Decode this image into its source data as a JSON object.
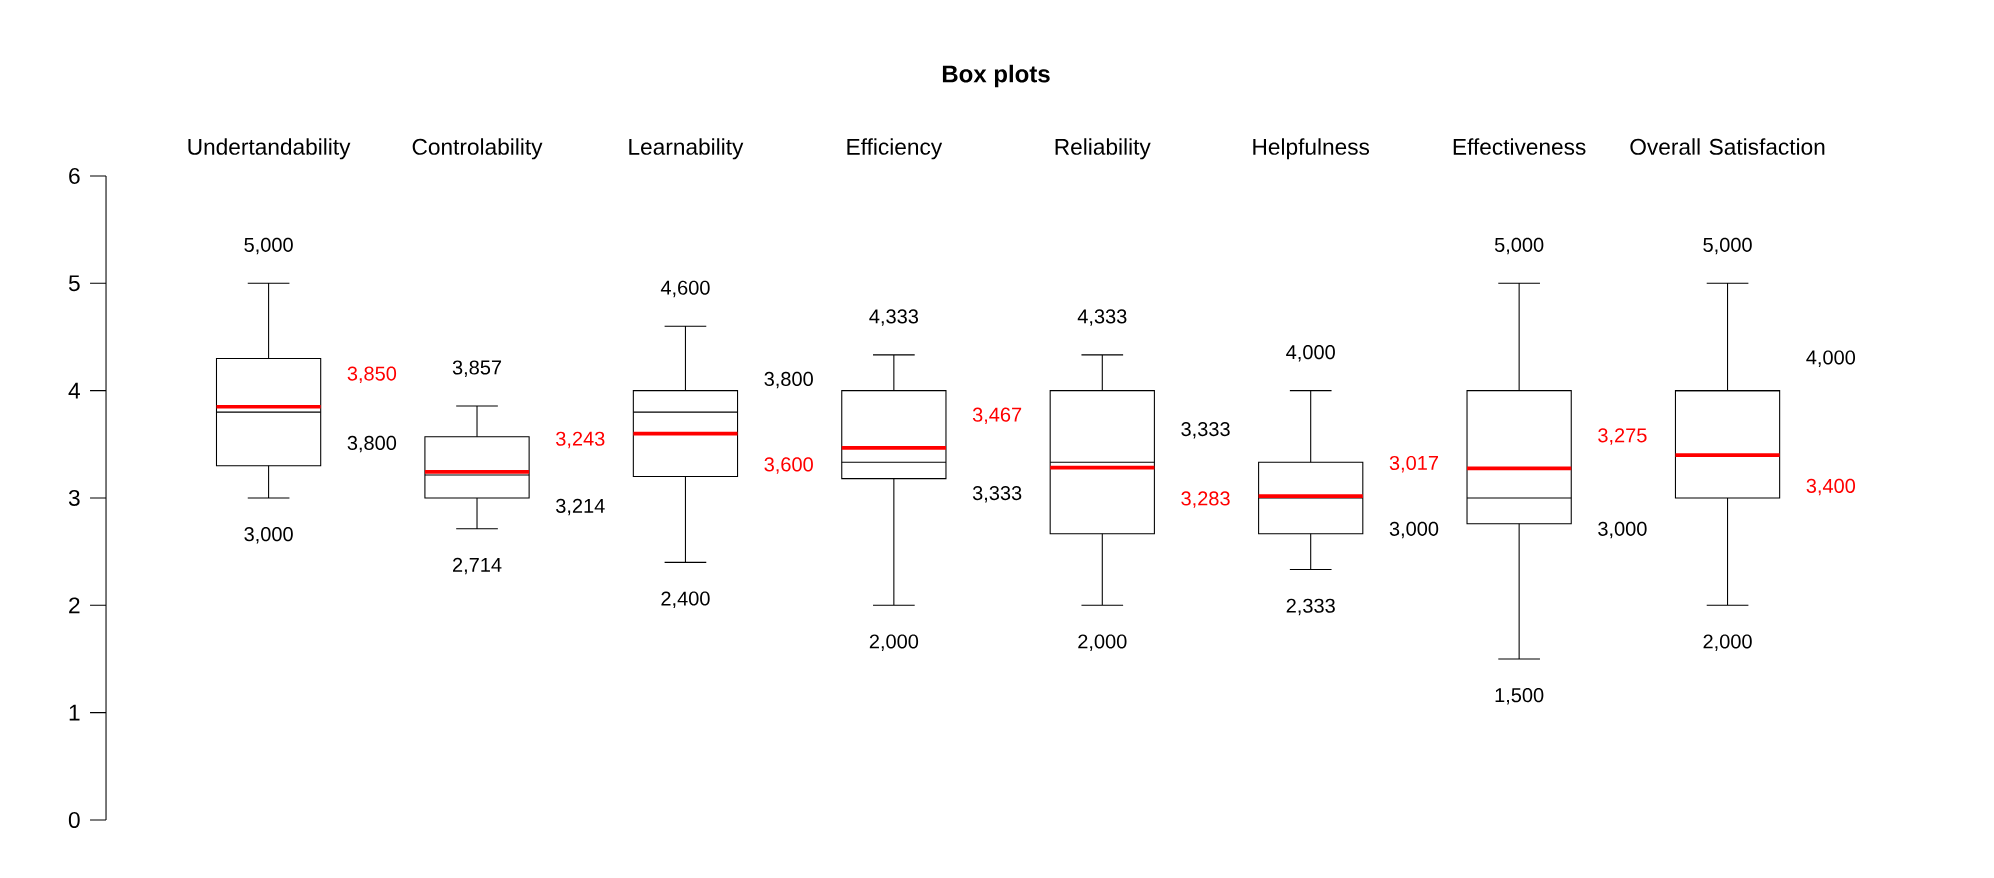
{
  "chart_data": {
    "type": "box",
    "title": "Box plots",
    "categories": [
      "Undertandability",
      "Controlability",
      "Learnability",
      "Efficiency",
      "Reliability",
      "Helpfulness",
      "Effectiveness",
      "Overall Satisfaction"
    ],
    "boxes": [
      {
        "low": 3.0,
        "q1": 3.3,
        "median": 3.8,
        "q3": 4.3,
        "high": 5.0,
        "mean": 3.85
      },
      {
        "low": 2.714,
        "q1": 3.0,
        "median": 3.214,
        "q3": 3.57,
        "high": 3.857,
        "mean": 3.243
      },
      {
        "low": 2.4,
        "q1": 3.2,
        "median": 3.8,
        "q3": 4.0,
        "high": 4.6,
        "mean": 3.6
      },
      {
        "low": 2.0,
        "q1": 3.18,
        "median": 3.333,
        "q3": 4.0,
        "high": 4.333,
        "mean": 3.467
      },
      {
        "low": 2.0,
        "q1": 2.667,
        "median": 3.333,
        "q3": 4.0,
        "high": 4.333,
        "mean": 3.283
      },
      {
        "low": 2.333,
        "q1": 2.667,
        "median": 3.0,
        "q3": 3.333,
        "high": 4.0,
        "mean": 3.017
      },
      {
        "low": 1.5,
        "q1": 2.76,
        "median": 3.0,
        "q3": 4.0,
        "high": 5.0,
        "mean": 3.275
      },
      {
        "low": 2.0,
        "q1": 3.0,
        "median": 4.0,
        "q3": 4.0,
        "high": 5.0,
        "mean": 3.4
      }
    ],
    "ylim": [
      0,
      6
    ],
    "yticks": [
      0,
      1,
      2,
      3,
      4,
      5,
      6
    ],
    "grid": false,
    "annotations": [
      "5,000",
      "3,000",
      "3,850",
      "3,800",
      "3,857",
      "2,714",
      "3,243",
      "3,214",
      "4,600",
      "2,400",
      "3,600",
      "3,800",
      "4,333",
      "2,000",
      "3,467",
      "3,333",
      "4,333",
      "2,000",
      "3,283",
      "3,333",
      "4,000",
      "2,333",
      "3,017",
      "3,000",
      "5,000",
      "1,500",
      "3,275",
      "3,000",
      "5,000",
      "2,000",
      "3,400",
      "4,000"
    ]
  }
}
